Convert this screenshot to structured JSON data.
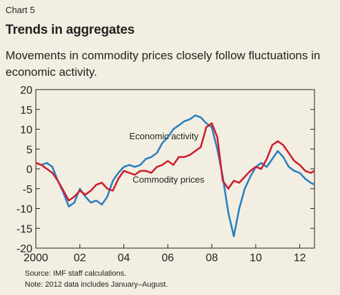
{
  "chart_label": "Chart 5",
  "title": "Trends in aggregates",
  "subtitle": "Movements in commodity prices closely follow fluctuations in economic activity.",
  "notes": {
    "source": "Source: IMF staff calculations.",
    "note": "Note: 2012 data includes January–August."
  },
  "colors": {
    "economic_activity": "#2a7fc1",
    "commodity_prices": "#cc1f2f",
    "background": "#f2eee1"
  },
  "chart_data": {
    "type": "line",
    "ylim": [
      -20,
      20
    ],
    "xlim": [
      2000,
      2012.67
    ],
    "yticks": [
      -20,
      -15,
      -10,
      -5,
      0,
      5,
      10,
      15,
      20
    ],
    "xticks": [
      {
        "value": 2000,
        "label": "2000"
      },
      {
        "value": 2002,
        "label": "02"
      },
      {
        "value": 2004,
        "label": "04"
      },
      {
        "value": 2006,
        "label": "06"
      },
      {
        "value": 2008,
        "label": "08"
      },
      {
        "value": 2010,
        "label": "10"
      },
      {
        "value": 2012,
        "label": "12"
      }
    ],
    "grid": false,
    "series": [
      {
        "name": "Economic activity",
        "color": "#2a7fc1",
        "label_at": {
          "x": 2004.25,
          "y": 7.5
        },
        "points": [
          [
            2000.0,
            1.5
          ],
          [
            2000.25,
            1.0
          ],
          [
            2000.5,
            1.5
          ],
          [
            2000.75,
            0.5
          ],
          [
            2001.0,
            -3.0
          ],
          [
            2001.25,
            -6.0
          ],
          [
            2001.5,
            -9.5
          ],
          [
            2001.75,
            -8.5
          ],
          [
            2002.0,
            -5.0
          ],
          [
            2002.25,
            -7.0
          ],
          [
            2002.5,
            -8.5
          ],
          [
            2002.75,
            -8.0
          ],
          [
            2003.0,
            -9.0
          ],
          [
            2003.25,
            -7.0
          ],
          [
            2003.5,
            -3.0
          ],
          [
            2003.75,
            -1.0
          ],
          [
            2004.0,
            0.5
          ],
          [
            2004.25,
            1.0
          ],
          [
            2004.5,
            0.5
          ],
          [
            2004.75,
            1.0
          ],
          [
            2005.0,
            2.5
          ],
          [
            2005.25,
            3.0
          ],
          [
            2005.5,
            4.0
          ],
          [
            2005.75,
            6.5
          ],
          [
            2006.0,
            8.0
          ],
          [
            2006.25,
            10.0
          ],
          [
            2006.5,
            11.0
          ],
          [
            2006.75,
            12.0
          ],
          [
            2007.0,
            12.5
          ],
          [
            2007.25,
            13.5
          ],
          [
            2007.5,
            13.0
          ],
          [
            2007.75,
            11.5
          ],
          [
            2008.0,
            10.5
          ],
          [
            2008.25,
            5.0
          ],
          [
            2008.5,
            -2.0
          ],
          [
            2008.75,
            -11.0
          ],
          [
            2009.0,
            -17.0
          ],
          [
            2009.25,
            -10.0
          ],
          [
            2009.5,
            -5.0
          ],
          [
            2009.75,
            -2.0
          ],
          [
            2010.0,
            0.5
          ],
          [
            2010.25,
            1.5
          ],
          [
            2010.5,
            0.5
          ],
          [
            2010.75,
            2.5
          ],
          [
            2011.0,
            4.5
          ],
          [
            2011.25,
            3.0
          ],
          [
            2011.5,
            0.5
          ],
          [
            2011.75,
            -0.5
          ],
          [
            2012.0,
            -1.0
          ],
          [
            2012.25,
            -2.5
          ],
          [
            2012.5,
            -3.5
          ],
          [
            2012.67,
            -4.0
          ]
        ]
      },
      {
        "name": "Commodity prices",
        "color": "#cc1f2f",
        "label_at": {
          "x": 2004.4,
          "y": -3.5
        },
        "points": [
          [
            2000.0,
            1.5
          ],
          [
            2000.25,
            1.0
          ],
          [
            2000.5,
            0.0
          ],
          [
            2000.75,
            -1.0
          ],
          [
            2001.0,
            -3.0
          ],
          [
            2001.25,
            -5.5
          ],
          [
            2001.5,
            -8.0
          ],
          [
            2001.75,
            -7.0
          ],
          [
            2002.0,
            -5.5
          ],
          [
            2002.25,
            -6.5
          ],
          [
            2002.5,
            -5.5
          ],
          [
            2002.75,
            -4.0
          ],
          [
            2003.0,
            -3.5
          ],
          [
            2003.25,
            -5.0
          ],
          [
            2003.5,
            -5.5
          ],
          [
            2003.75,
            -2.5
          ],
          [
            2004.0,
            -0.5
          ],
          [
            2004.25,
            -1.0
          ],
          [
            2004.5,
            -1.5
          ],
          [
            2004.75,
            -0.5
          ],
          [
            2005.0,
            -0.5
          ],
          [
            2005.25,
            -1.0
          ],
          [
            2005.5,
            0.5
          ],
          [
            2005.75,
            1.0
          ],
          [
            2006.0,
            2.0
          ],
          [
            2006.25,
            1.0
          ],
          [
            2006.5,
            3.0
          ],
          [
            2006.75,
            3.0
          ],
          [
            2007.0,
            3.5
          ],
          [
            2007.25,
            4.5
          ],
          [
            2007.5,
            5.5
          ],
          [
            2007.75,
            10.5
          ],
          [
            2008.0,
            11.5
          ],
          [
            2008.25,
            8.0
          ],
          [
            2008.5,
            -3.0
          ],
          [
            2008.75,
            -5.0
          ],
          [
            2009.0,
            -3.0
          ],
          [
            2009.25,
            -3.5
          ],
          [
            2009.5,
            -2.0
          ],
          [
            2009.75,
            -0.5
          ],
          [
            2010.0,
            0.5
          ],
          [
            2010.25,
            0.0
          ],
          [
            2010.5,
            2.5
          ],
          [
            2010.75,
            6.0
          ],
          [
            2011.0,
            7.0
          ],
          [
            2011.25,
            6.0
          ],
          [
            2011.5,
            4.0
          ],
          [
            2011.75,
            2.0
          ],
          [
            2012.0,
            1.0
          ],
          [
            2012.25,
            -0.5
          ],
          [
            2012.5,
            -1.0
          ],
          [
            2012.67,
            -0.5
          ]
        ]
      }
    ]
  }
}
